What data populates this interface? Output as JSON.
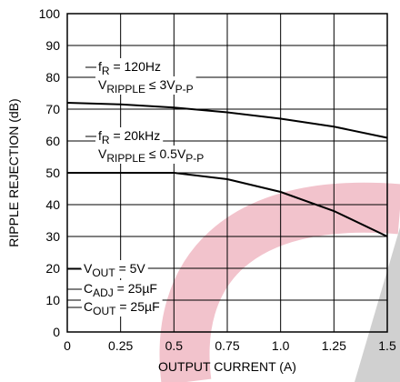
{
  "chart_data": {
    "type": "line",
    "x_label": "OUTPUT CURRENT (A)",
    "y_label": "RIPPLE REJECTION (dB)",
    "x": [
      0,
      0.25,
      0.5,
      0.75,
      1.0,
      1.25,
      1.5
    ],
    "series": [
      {
        "name": "fR = 120Hz",
        "color": "#000000",
        "values": [
          72,
          71.5,
          70.5,
          69,
          67,
          64.5,
          61
        ]
      },
      {
        "name": "fR = 20kHz",
        "color": "#000000",
        "values": [
          50,
          50,
          50,
          48,
          44,
          38,
          30
        ]
      }
    ],
    "xlim": [
      0,
      1.5
    ],
    "xticks": [
      0,
      0.25,
      0.5,
      0.75,
      {
        "value": 1.0,
        "label": "1.0"
      },
      1.25,
      1.5
    ],
    "ylim": [
      0,
      100
    ],
    "yticks": [
      0,
      10,
      20,
      30,
      40,
      50,
      60,
      70,
      80,
      90,
      100
    ],
    "grid": true,
    "annotations": [
      [
        "f",
        "R",
        " = 120Hz"
      ],
      [
        "V",
        "RIPPLE",
        " ≤ 3V",
        "P-P"
      ],
      [
        "f",
        "R",
        " = 20kHz"
      ],
      [
        "V",
        "RIPPLE",
        " ≤ 0.5V",
        "P-P"
      ],
      [
        "V",
        "OUT",
        " = 5V"
      ],
      [
        "C",
        "ADJ",
        " = 25µF"
      ],
      [
        "C",
        "OUT",
        " = 25µF"
      ]
    ]
  }
}
